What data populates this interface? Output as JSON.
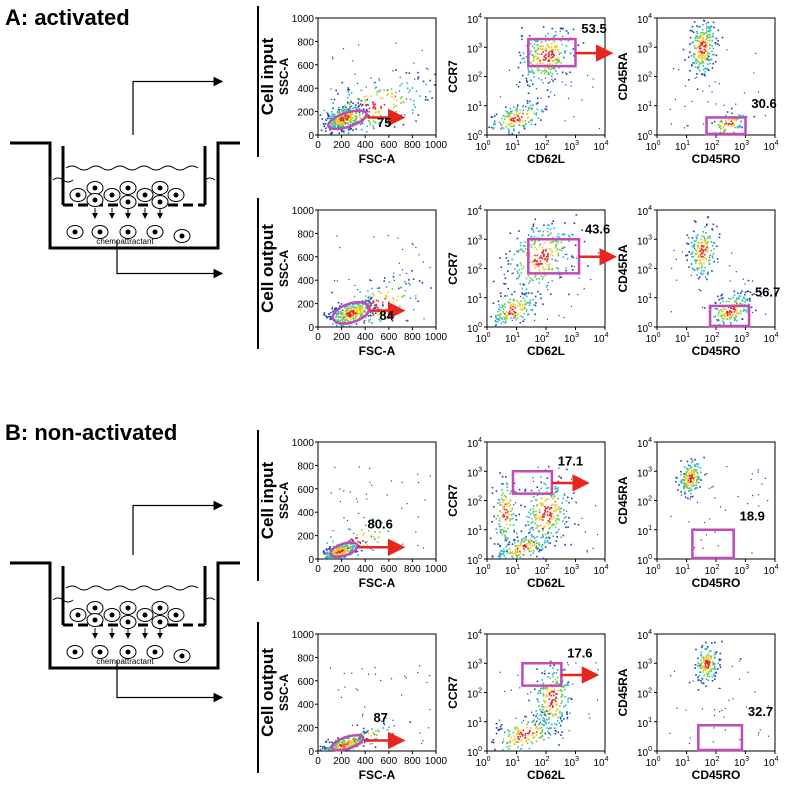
{
  "linear_ticks": [
    0,
    200,
    400,
    600,
    800,
    1000
  ],
  "log_ticks": {
    "base": 10,
    "exponents": [
      0,
      1,
      2,
      3,
      4
    ]
  },
  "panels": [
    {
      "title": "A: activated",
      "well_label": "chemoattractant",
      "rows": [
        {
          "label": "Cell input",
          "plots": [
            {
              "scale": "linear",
              "x_label": "FSC-A",
              "y_label": "SSC-A",
              "gate": 75
            },
            {
              "scale": "log",
              "x_label": "CD62L",
              "y_label": "CCR7",
              "gate": 53.5
            },
            {
              "scale": "log",
              "x_label": "CD45RO",
              "y_label": "CD45RA",
              "gate": 30.6
            }
          ]
        },
        {
          "label": "Cell output",
          "plots": [
            {
              "scale": "linear",
              "x_label": "FSC-A",
              "y_label": "SSC-A",
              "gate": 84
            },
            {
              "scale": "log",
              "x_label": "CD62L",
              "y_label": "CCR7",
              "gate": 43.6
            },
            {
              "scale": "log",
              "x_label": "CD45RO",
              "y_label": "CD45RA",
              "gate": 56.7
            }
          ]
        }
      ]
    },
    {
      "title": "B: non-activated",
      "well_label": "chemoattractant",
      "rows": [
        {
          "label": "Cell input",
          "plots": [
            {
              "scale": "linear",
              "x_label": "FSC-A",
              "y_label": "SSC-A",
              "gate": 80.6
            },
            {
              "scale": "log",
              "x_label": "CD62L",
              "y_label": "CCR7",
              "gate": 17.1
            },
            {
              "scale": "log",
              "x_label": "CD45RO",
              "y_label": "CD45RA",
              "gate": 18.9
            }
          ]
        },
        {
          "label": "Cell output",
          "plots": [
            {
              "scale": "linear",
              "x_label": "FSC-A",
              "y_label": "SSC-A",
              "gate": 87
            },
            {
              "scale": "log",
              "x_label": "CD62L",
              "y_label": "CCR7",
              "gate": 17.6
            },
            {
              "scale": "log",
              "x_label": "CD45RO",
              "y_label": "CD45RA",
              "gate": 32.7
            }
          ]
        }
      ]
    }
  ]
}
